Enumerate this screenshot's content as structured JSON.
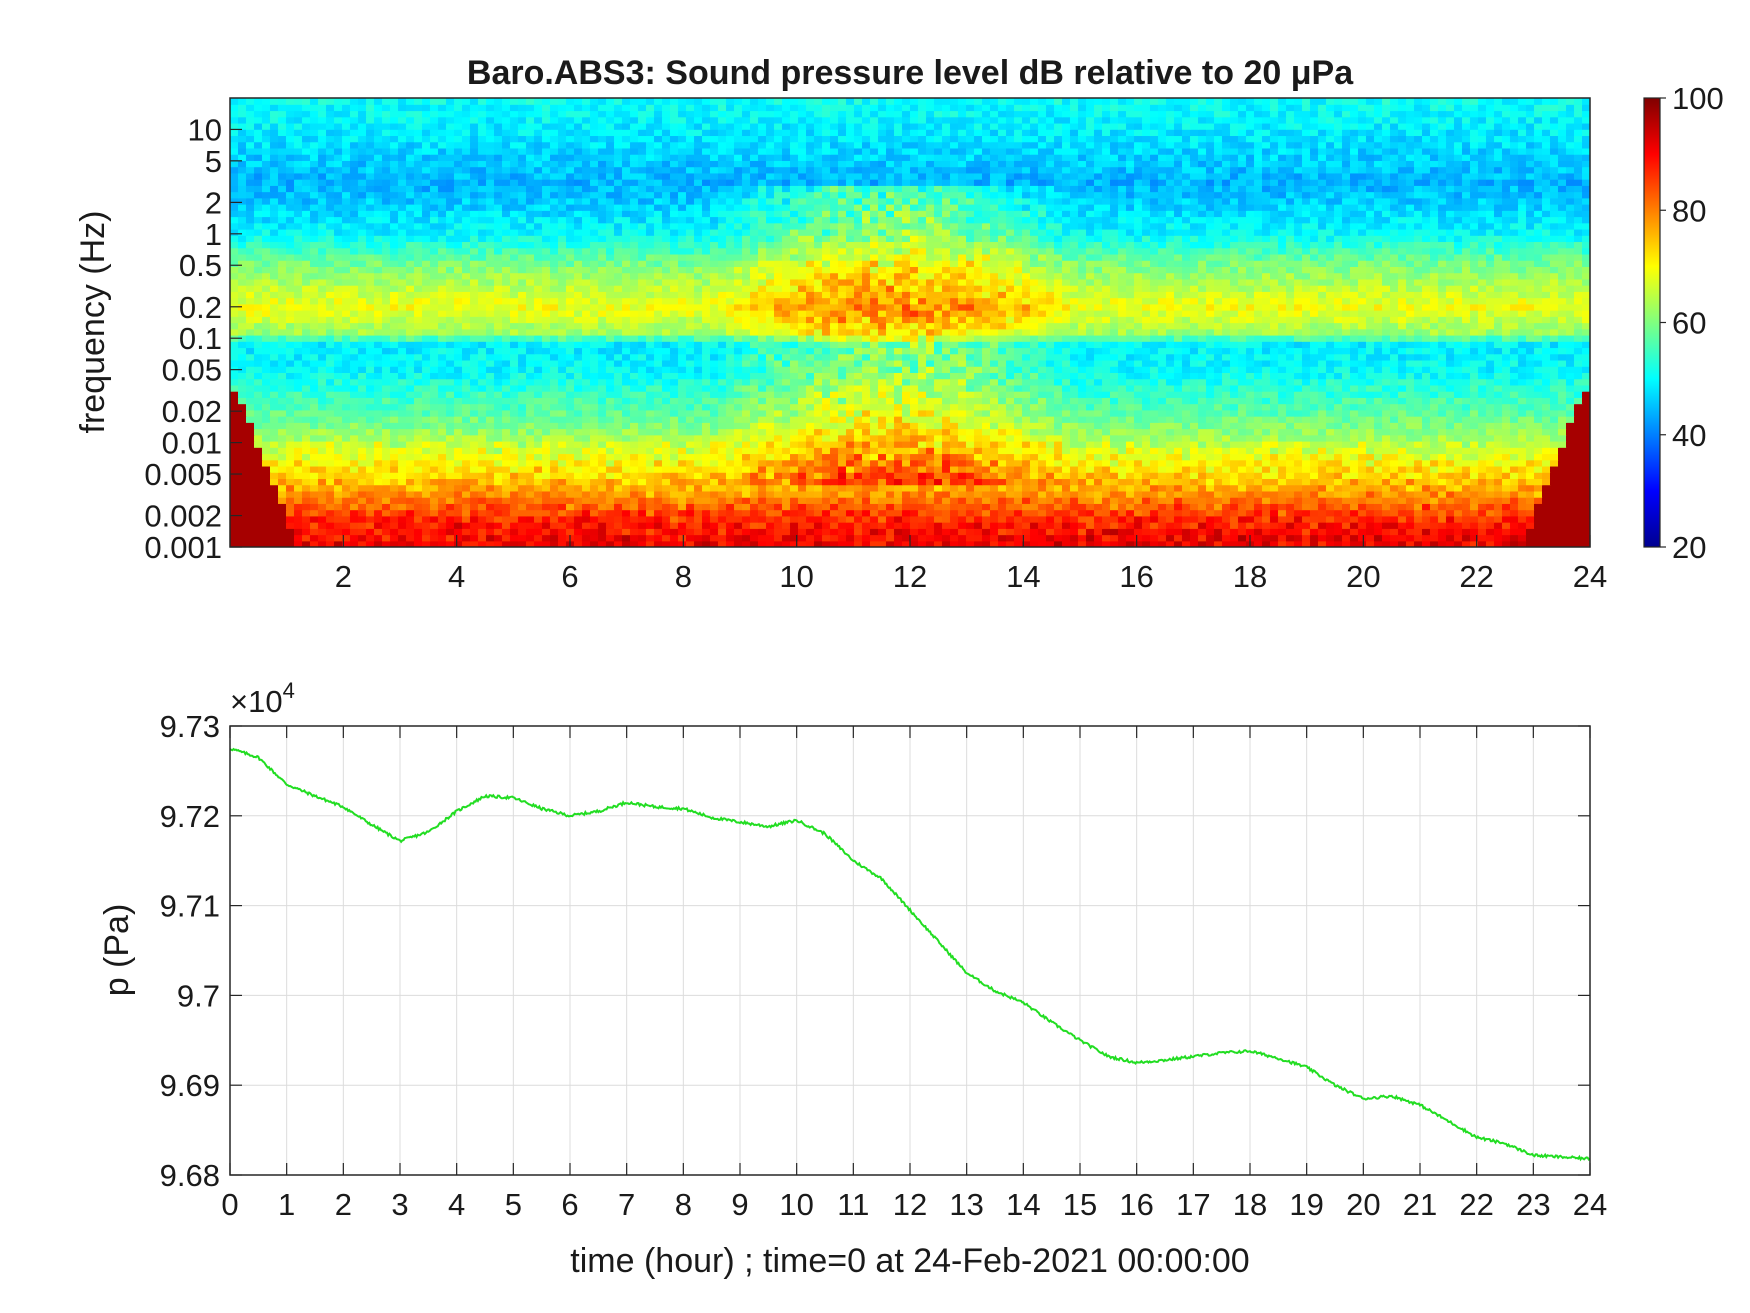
{
  "chart_data": [
    {
      "type": "heatmap",
      "title": "Baro.ABS3: Sound pressure level dB relative to 20 μPa",
      "xlabel": "",
      "ylabel": "frequency (Hz)",
      "xlim": [
        0,
        24
      ],
      "ylim": [
        0.001,
        20
      ],
      "y_scale": "log",
      "x_ticks": [
        2,
        4,
        6,
        8,
        10,
        12,
        14,
        16,
        18,
        20,
        22,
        24
      ],
      "y_ticks": [
        {
          "value": 0.001,
          "label": "0.001"
        },
        {
          "value": 0.002,
          "label": "0.002"
        },
        {
          "value": 0.005,
          "label": "0.005"
        },
        {
          "value": 0.01,
          "label": "0.01"
        },
        {
          "value": 0.02,
          "label": "0.02"
        },
        {
          "value": 0.05,
          "label": "0.05"
        },
        {
          "value": 0.1,
          "label": "0.1"
        },
        {
          "value": 0.2,
          "label": "0.2"
        },
        {
          "value": 0.5,
          "label": "0.5"
        },
        {
          "value": 1,
          "label": "1"
        },
        {
          "value": 2,
          "label": "2"
        },
        {
          "value": 5,
          "label": "5"
        },
        {
          "value": 10,
          "label": "10"
        }
      ],
      "colorbar": {
        "range": [
          20,
          100
        ],
        "ticks": [
          20,
          40,
          60,
          80,
          100
        ],
        "colormap": "jet"
      },
      "frequency_profile_db": [
        {
          "freq": 0.001,
          "db": 90
        },
        {
          "freq": 0.0015,
          "db": 88
        },
        {
          "freq": 0.002,
          "db": 85
        },
        {
          "freq": 0.003,
          "db": 78
        },
        {
          "freq": 0.005,
          "db": 72
        },
        {
          "freq": 0.01,
          "db": 64
        },
        {
          "freq": 0.02,
          "db": 57
        },
        {
          "freq": 0.05,
          "db": 50
        },
        {
          "freq": 0.09,
          "db": 49
        },
        {
          "freq": 0.11,
          "db": 62
        },
        {
          "freq": 0.2,
          "db": 69
        },
        {
          "freq": 0.5,
          "db": 60
        },
        {
          "freq": 1,
          "db": 50
        },
        {
          "freq": 3,
          "db": 44
        },
        {
          "freq": 8,
          "db": 48
        },
        {
          "freq": 20,
          "db": 51
        }
      ],
      "active_period_hours": [
        8.5,
        15
      ]
    },
    {
      "type": "line",
      "title": "",
      "xlabel": "time (hour) ; time=0 at 24-Feb-2021 00:00:00",
      "ylabel": "p (Pa)",
      "xlim": [
        0,
        24
      ],
      "ylim": [
        96800,
        97300
      ],
      "y_exponent_label": "×10",
      "y_exponent_power": "4",
      "x_ticks": [
        0,
        1,
        2,
        3,
        4,
        5,
        6,
        7,
        8,
        9,
        10,
        11,
        12,
        13,
        14,
        15,
        16,
        17,
        18,
        19,
        20,
        21,
        22,
        23,
        24
      ],
      "y_ticks": [
        {
          "value": 96800,
          "label": "9.68"
        },
        {
          "value": 96900,
          "label": "9.69"
        },
        {
          "value": 97000,
          "label": "9.7"
        },
        {
          "value": 97100,
          "label": "9.71"
        },
        {
          "value": 97200,
          "label": "9.72"
        },
        {
          "value": 97300,
          "label": "9.73"
        }
      ],
      "grid": true,
      "line_color": "#22dd22",
      "series": [
        {
          "x": [
            0,
            0.5,
            1,
            1.5,
            2,
            2.5,
            3,
            3.5,
            4,
            4.5,
            5,
            5.5,
            6,
            6.5,
            7,
            7.5,
            8,
            8.5,
            9,
            9.5,
            10,
            10.5,
            11,
            11.5,
            12,
            12.5,
            13,
            13.5,
            14,
            14.5,
            15,
            15.5,
            16,
            16.5,
            17,
            17.5,
            18,
            18.5,
            19,
            19.5,
            20,
            20.5,
            21,
            21.5,
            22,
            22.5,
            23,
            23.5,
            24
          ],
          "y": [
            97275,
            97265,
            97235,
            97222,
            97210,
            97190,
            97172,
            97182,
            97205,
            97222,
            97220,
            97208,
            97200,
            97205,
            97215,
            97210,
            97208,
            97198,
            97193,
            97188,
            97195,
            97180,
            97150,
            97130,
            97095,
            97060,
            97025,
            97005,
            96992,
            96970,
            96950,
            96932,
            96925,
            96928,
            96932,
            96936,
            96938,
            96930,
            96920,
            96900,
            96885,
            96888,
            96878,
            96860,
            96842,
            96835,
            96822,
            96820,
            96818
          ]
        }
      ]
    }
  ]
}
